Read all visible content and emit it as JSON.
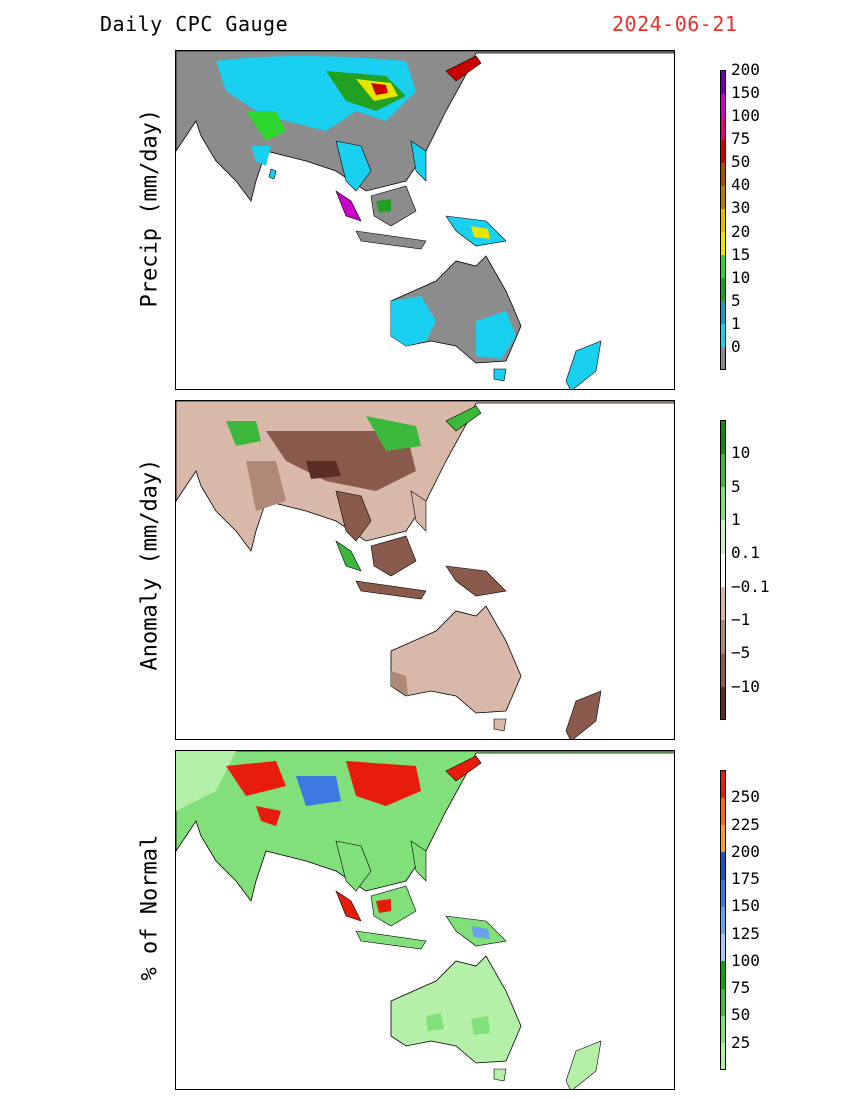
{
  "header": {
    "title": "Daily CPC Gauge",
    "date": "2024-06-21"
  },
  "panels": [
    {
      "id": "precip",
      "ylabel": "Precip (mm/day)",
      "colorbar": {
        "colors": [
          "#8c8c8c",
          "#19d0f0",
          "#1a9bc0",
          "#22a022",
          "#2ed62e",
          "#e6e600",
          "#e6b800",
          "#b87c00",
          "#a85000",
          "#c80000",
          "#e00070",
          "#c800c8",
          "#6a00b0"
        ],
        "labels": [
          "0",
          "1",
          "5",
          "10",
          "15",
          "20",
          "30",
          "40",
          "50",
          "75",
          "100",
          "150",
          "200"
        ]
      }
    },
    {
      "id": "anomaly",
      "ylabel": "Anomaly (mm/day)",
      "colorbar": {
        "colors": [
          "#5a2e24",
          "#8a5a4c",
          "#b08878",
          "#d8b8a8",
          "#ffffff",
          "#c8f0c0",
          "#82de78",
          "#3cb83c",
          "#118a11"
        ],
        "labels": [
          "−10",
          "−5",
          "−1",
          "−0.1",
          "0.1",
          "1",
          "5",
          "10"
        ]
      }
    },
    {
      "id": "percent",
      "ylabel": "% of Normal",
      "colorbar": {
        "colors": [
          "#b4f0a8",
          "#82e07a",
          "#40c040",
          "#10a010",
          "#a8c8f8",
          "#6aa0f0",
          "#3c78e0",
          "#1e50c8",
          "#ff9c28",
          "#ff6a10",
          "#e81c0c"
        ],
        "labels": [
          "25",
          "50",
          "75",
          "100",
          "125",
          "150",
          "175",
          "200",
          "225",
          "250"
        ]
      }
    }
  ]
}
